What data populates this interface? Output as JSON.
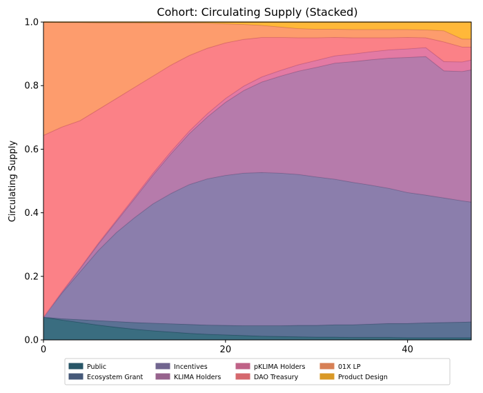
{
  "chart_data": {
    "type": "area",
    "stacked": true,
    "title": "Cohort: Circulating Supply (Stacked)",
    "xlabel": "",
    "ylabel": "Circulating Supply",
    "xlim": [
      0,
      47
    ],
    "ylim": [
      0,
      1.0
    ],
    "xticks": [
      0,
      20,
      40
    ],
    "yticks": [
      0.0,
      0.2,
      0.4,
      0.6,
      0.8,
      1.0
    ],
    "grid": false,
    "legend_position": "bottom-center",
    "x": [
      0,
      2,
      4,
      6,
      8,
      10,
      12,
      14,
      16,
      18,
      20,
      22,
      24,
      26,
      28,
      30,
      32,
      34,
      36,
      38,
      40,
      42,
      44,
      46,
      47
    ],
    "series": [
      {
        "name": "Public",
        "color": "#2f6579",
        "values": [
          0.072,
          0.063,
          0.055,
          0.047,
          0.04,
          0.034,
          0.029,
          0.025,
          0.021,
          0.018,
          0.016,
          0.014,
          0.012,
          0.011,
          0.01,
          0.009,
          0.009,
          0.008,
          0.008,
          0.008,
          0.007,
          0.007,
          0.007,
          0.007,
          0.007
        ]
      },
      {
        "name": "Ecosystem Grant",
        "color": "#52698e",
        "values": [
          0.0,
          0.004,
          0.009,
          0.014,
          0.018,
          0.021,
          0.024,
          0.026,
          0.028,
          0.029,
          0.03,
          0.031,
          0.033,
          0.034,
          0.036,
          0.037,
          0.039,
          0.04,
          0.042,
          0.044,
          0.045,
          0.047,
          0.048,
          0.049,
          0.05
        ]
      },
      {
        "name": "Incentives",
        "color": "#8577a8",
        "values": [
          0.0,
          0.08,
          0.15,
          0.22,
          0.28,
          0.33,
          0.375,
          0.41,
          0.44,
          0.46,
          0.472,
          0.48,
          0.482,
          0.48,
          0.475,
          0.467,
          0.458,
          0.448,
          0.437,
          0.425,
          0.412,
          0.402,
          0.392,
          0.382,
          0.377
        ]
      },
      {
        "name": "KLIMA Holders",
        "color": "#b274a6",
        "values": [
          0.0,
          0.003,
          0.01,
          0.02,
          0.035,
          0.06,
          0.09,
          0.125,
          0.16,
          0.195,
          0.23,
          0.26,
          0.285,
          0.305,
          0.325,
          0.345,
          0.365,
          0.38,
          0.395,
          0.41,
          0.425,
          0.436,
          0.4,
          0.407,
          0.416
        ]
      },
      {
        "name": "pKLIMA Holders",
        "color": "#e1739f",
        "values": [
          0.0,
          0.001,
          0.002,
          0.003,
          0.004,
          0.005,
          0.006,
          0.007,
          0.008,
          0.01,
          0.012,
          0.014,
          0.016,
          0.018,
          0.02,
          0.022,
          0.023,
          0.024,
          0.025,
          0.026,
          0.027,
          0.028,
          0.029,
          0.03,
          0.031
        ]
      },
      {
        "name": "DAO Treasury",
        "color": "#fb7a81",
        "values": [
          0.572,
          0.519,
          0.464,
          0.421,
          0.383,
          0.345,
          0.306,
          0.272,
          0.238,
          0.206,
          0.175,
          0.147,
          0.124,
          0.104,
          0.085,
          0.071,
          0.058,
          0.051,
          0.044,
          0.038,
          0.036,
          0.031,
          0.062,
          0.047,
          0.041
        ]
      },
      {
        "name": "01X  LP",
        "color": "#fd9765",
        "values": [
          0.356,
          0.329,
          0.309,
          0.273,
          0.238,
          0.203,
          0.167,
          0.133,
          0.103,
          0.079,
          0.06,
          0.047,
          0.038,
          0.033,
          0.029,
          0.027,
          0.026,
          0.026,
          0.026,
          0.026,
          0.025,
          0.025,
          0.035,
          0.025,
          0.025
        ]
      },
      {
        "name": "Product Design",
        "color": "#ffb42e",
        "values": [
          0.0,
          0.001,
          0.001,
          0.002,
          0.002,
          0.002,
          0.003,
          0.002,
          0.002,
          0.003,
          0.005,
          0.007,
          0.01,
          0.015,
          0.02,
          0.022,
          0.022,
          0.023,
          0.023,
          0.023,
          0.023,
          0.024,
          0.027,
          0.053,
          0.053
        ]
      }
    ]
  }
}
